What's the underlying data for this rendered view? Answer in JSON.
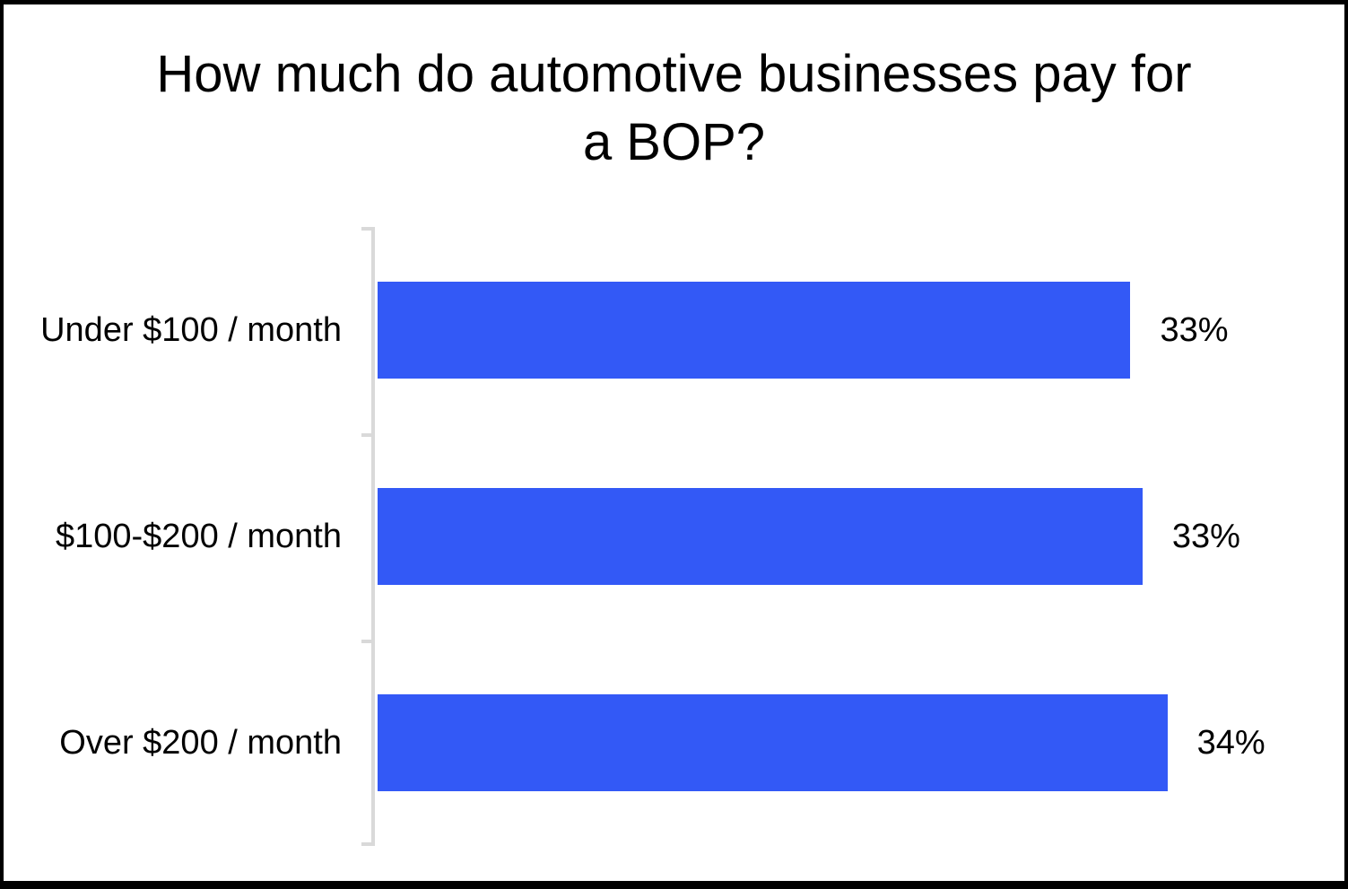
{
  "chart_data": {
    "type": "bar",
    "orientation": "horizontal",
    "title": "How much do automotive businesses pay for a BOP?",
    "title_lines": [
      "How much do automotive businesses pay for",
      "a BOP?"
    ],
    "categories": [
      "Under $100 / month",
      "$100-$200 / month",
      "Over $200 / month"
    ],
    "values": [
      33,
      33,
      34
    ],
    "value_labels": [
      "33%",
      "33%",
      "34%"
    ],
    "unit": "%",
    "xlabel": "",
    "ylabel": "",
    "xlim": [
      0,
      40
    ],
    "grid": false,
    "legend": "none",
    "bar_fractions": [
      0.815,
      0.828,
      0.855
    ],
    "colors": {
      "bar": "#3359F6",
      "axis": "#D9D9D9",
      "text": "#000000",
      "background": "#FFFFFF",
      "frame_border": "#000000"
    }
  }
}
